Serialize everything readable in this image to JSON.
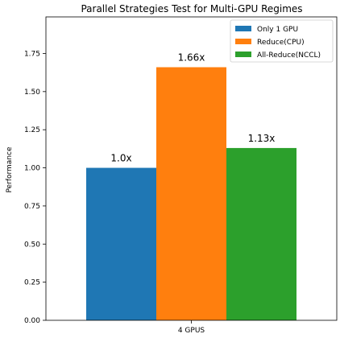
{
  "chart_data": {
    "type": "bar",
    "title": "Parallel Strategies Test for Multi-GPU Regimes",
    "xlabel": "",
    "ylabel": "Performance",
    "categories": [
      "4 GPUS"
    ],
    "series": [
      {
        "name": "Only 1 GPU",
        "values": [
          1.0
        ],
        "label": "1.0x",
        "color": "#1f77b4"
      },
      {
        "name": "Reduce(CPU)",
        "values": [
          1.66
        ],
        "label": "1.66x",
        "color": "#ff7f0e"
      },
      {
        "name": "All-Reduce(NCCL)",
        "values": [
          1.13
        ],
        "label": "1.13x",
        "color": "#2ca02c"
      }
    ],
    "ylim": [
      0,
      1.99
    ],
    "yticks": [
      "0.00",
      "0.25",
      "0.50",
      "0.75",
      "1.00",
      "1.25",
      "1.50",
      "1.75"
    ],
    "grid": false,
    "legend_position": "top-right"
  }
}
